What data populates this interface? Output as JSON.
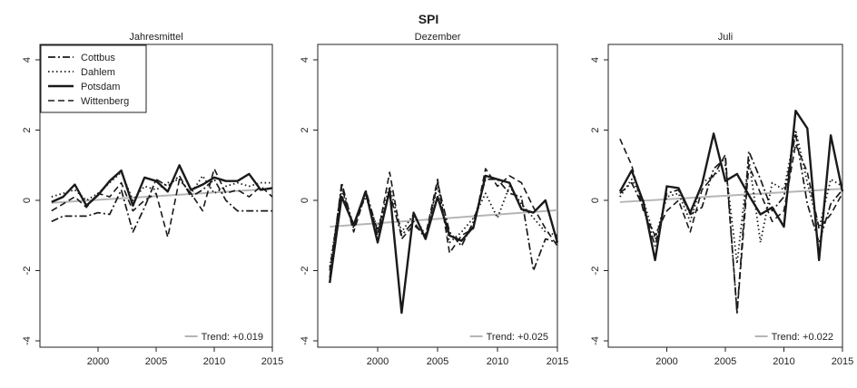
{
  "figure_title": "SPI",
  "trend_color": "#b5b5b5",
  "line_color": "#1a1a1a",
  "legend": {
    "placement": "top-left of first panel",
    "entries": [
      {
        "label": "Cottbus",
        "style": "dashdot"
      },
      {
        "label": "Dahlem",
        "style": "dotted"
      },
      {
        "label": "Potsdam",
        "style": "solid"
      },
      {
        "label": "Wittenberg",
        "style": "dashed"
      }
    ]
  },
  "chart_data": [
    {
      "type": "line",
      "title": "Jahresmittel",
      "xlim": [
        1995,
        2015
      ],
      "ylim": [
        -4,
        4
      ],
      "xticks": [
        2000,
        2005,
        2010,
        2015
      ],
      "yticks": [
        -4,
        -2,
        0,
        2,
        4
      ],
      "trend_label": "Trend: +0.019",
      "trend": [
        [
          1996,
          -0.07
        ],
        [
          2015,
          0.33
        ]
      ],
      "x": [
        1996,
        1997,
        1998,
        1999,
        2000,
        2001,
        2002,
        2003,
        2004,
        2005,
        2006,
        2007,
        2008,
        2009,
        2010,
        2011,
        2012,
        2013,
        2014,
        2015
      ],
      "series": [
        {
          "name": "Cottbus",
          "style": "dashdot",
          "values": [
            -0.6,
            -0.45,
            -0.45,
            -0.45,
            -0.35,
            -0.4,
            0.3,
            -0.9,
            -0.2,
            0.6,
            0.4,
            0.7,
            0.1,
            0.3,
            0.6,
            0.0,
            -0.3,
            -0.3,
            -0.3,
            -0.3
          ]
        },
        {
          "name": "Dahlem",
          "style": "dotted",
          "values": [
            0.1,
            0.2,
            0.3,
            0.0,
            0.2,
            0.5,
            0.8,
            0.0,
            0.4,
            0.3,
            0.5,
            0.6,
            0.2,
            0.7,
            0.2,
            0.4,
            0.5,
            0.4,
            0.5,
            0.5
          ]
        },
        {
          "name": "Potsdam",
          "style": "solid",
          "values": [
            -0.05,
            0.1,
            0.45,
            -0.15,
            0.15,
            0.55,
            0.85,
            -0.15,
            0.65,
            0.55,
            0.25,
            1.0,
            0.3,
            0.45,
            0.65,
            0.55,
            0.55,
            0.75,
            0.3,
            0.35
          ]
        },
        {
          "name": "Wittenberg",
          "style": "dashed",
          "values": [
            -0.3,
            -0.1,
            0.1,
            -0.2,
            0.2,
            0.1,
            0.5,
            -0.3,
            0.0,
            0.2,
            -1.05,
            0.6,
            0.2,
            -0.3,
            0.9,
            0.2,
            0.3,
            0.1,
            0.4,
            0.1
          ]
        }
      ]
    },
    {
      "type": "line",
      "title": "Dezember",
      "xlim": [
        1995,
        2015
      ],
      "ylim": [
        -4,
        4
      ],
      "xticks": [
        2000,
        2005,
        2010,
        2015
      ],
      "yticks": [
        -4,
        -2,
        0,
        2,
        4
      ],
      "trend_label": "Trend: +0.025",
      "trend": [
        [
          1996,
          -0.75
        ],
        [
          2015,
          -0.28
        ]
      ],
      "x": [
        1996,
        1997,
        1998,
        1999,
        2000,
        2001,
        2002,
        2003,
        2004,
        2005,
        2006,
        2007,
        2008,
        2009,
        2010,
        2011,
        2012,
        2013,
        2014,
        2015
      ],
      "series": [
        {
          "name": "Cottbus",
          "style": "dashdot",
          "values": [
            -2.2,
            0.5,
            -0.8,
            0.3,
            -0.9,
            0.2,
            -1.0,
            -0.6,
            -1.1,
            0.5,
            -0.9,
            -1.3,
            -0.6,
            0.6,
            0.6,
            0.2,
            0.1,
            -2.0,
            -1.1,
            -1.2
          ]
        },
        {
          "name": "Dahlem",
          "style": "dotted",
          "values": [
            -1.9,
            0.3,
            -0.7,
            0.1,
            -0.8,
            0.4,
            -0.9,
            -0.4,
            -1.0,
            0.4,
            -1.2,
            -0.9,
            -0.5,
            0.2,
            -0.5,
            0.4,
            -0.1,
            -0.5,
            -0.9,
            -1.0
          ]
        },
        {
          "name": "Potsdam",
          "style": "solid",
          "values": [
            -2.35,
            0.1,
            -0.7,
            0.25,
            -1.2,
            0.3,
            -3.2,
            -0.35,
            -1.1,
            0.1,
            -1.0,
            -1.15,
            -0.75,
            0.7,
            0.6,
            0.5,
            -0.25,
            -0.35,
            0.0,
            -1.2
          ]
        },
        {
          "name": "Wittenberg",
          "style": "dashed",
          "values": [
            -2.0,
            0.4,
            -0.9,
            0.2,
            -1.0,
            0.8,
            -1.1,
            -0.7,
            -1.0,
            0.6,
            -1.5,
            -1.0,
            -0.8,
            0.9,
            0.4,
            0.7,
            0.5,
            -0.2,
            -0.8,
            -1.3
          ]
        }
      ]
    },
    {
      "type": "line",
      "title": "Juli",
      "xlim": [
        1995,
        2015
      ],
      "ylim": [
        -4,
        4
      ],
      "xticks": [
        2000,
        2005,
        2010,
        2015
      ],
      "yticks": [
        -4,
        -2,
        0,
        2,
        4
      ],
      "trend_label": "Trend: +0.022",
      "trend": [
        [
          1996,
          -0.05
        ],
        [
          2015,
          0.33
        ]
      ],
      "x": [
        1996,
        1997,
        1998,
        1999,
        2000,
        2001,
        2002,
        2003,
        2004,
        2005,
        2006,
        2007,
        2008,
        2009,
        2010,
        2011,
        2012,
        2013,
        2014,
        2015
      ],
      "series": [
        {
          "name": "Cottbus",
          "style": "dashdot",
          "values": [
            0.2,
            0.5,
            -0.2,
            -1.3,
            0.2,
            0.3,
            -0.4,
            -0.2,
            0.9,
            1.2,
            -3.2,
            1.4,
            0.6,
            -0.3,
            0.1,
            1.9,
            -0.1,
            -1.2,
            -0.1,
            0.3
          ]
        },
        {
          "name": "Dahlem",
          "style": "dotted",
          "values": [
            0.1,
            0.6,
            0.0,
            -1.1,
            0.1,
            0.2,
            -0.6,
            0.5,
            0.7,
            1.0,
            -1.8,
            1.2,
            -1.2,
            0.5,
            0.3,
            2.0,
            0.5,
            -0.8,
            0.6,
            0.4
          ]
        },
        {
          "name": "Potsdam",
          "style": "solid",
          "values": [
            0.25,
            0.85,
            -0.05,
            -1.7,
            0.4,
            0.35,
            -0.35,
            0.45,
            1.9,
            0.55,
            0.75,
            0.15,
            -0.4,
            -0.2,
            -0.75,
            2.55,
            2.05,
            -1.7,
            1.85,
            0.25
          ]
        },
        {
          "name": "Wittenberg",
          "style": "dashed",
          "values": [
            1.75,
            1.0,
            -0.3,
            -1.0,
            -0.3,
            0.0,
            -0.9,
            0.3,
            0.7,
            1.3,
            -3.2,
            1.0,
            0.2,
            -0.6,
            -0.3,
            1.6,
            0.8,
            -0.8,
            -0.4,
            0.2
          ]
        }
      ]
    }
  ]
}
